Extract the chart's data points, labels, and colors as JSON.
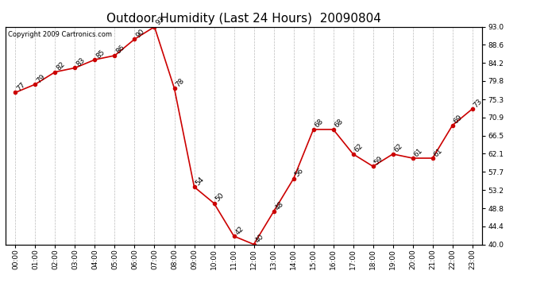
{
  "title": "Outdoor Humidity (Last 24 Hours)  20090804",
  "copyright": "Copyright 2009 Cartronics.com",
  "hours": [
    "00:00",
    "01:00",
    "02:00",
    "03:00",
    "04:00",
    "05:00",
    "06:00",
    "07:00",
    "08:00",
    "09:00",
    "10:00",
    "11:00",
    "12:00",
    "13:00",
    "14:00",
    "15:00",
    "16:00",
    "17:00",
    "18:00",
    "19:00",
    "20:00",
    "21:00",
    "22:00",
    "23:00"
  ],
  "values": [
    77,
    79,
    82,
    83,
    85,
    86,
    90,
    93,
    78,
    54,
    50,
    42,
    40,
    48,
    56,
    68,
    68,
    62,
    59,
    62,
    61,
    61,
    69,
    73
  ],
  "line_color": "#cc0000",
  "marker_size": 3,
  "ylim": [
    40.0,
    93.0
  ],
  "yticks_right": [
    40.0,
    44.4,
    48.8,
    53.2,
    57.7,
    62.1,
    66.5,
    70.9,
    75.3,
    79.8,
    84.2,
    88.6,
    93.0
  ],
  "bg_color": "#ffffff",
  "grid_color": "#bbbbbb",
  "title_fontsize": 11,
  "annot_fontsize": 6.5,
  "tick_fontsize": 6.5,
  "copyright_fontsize": 6
}
